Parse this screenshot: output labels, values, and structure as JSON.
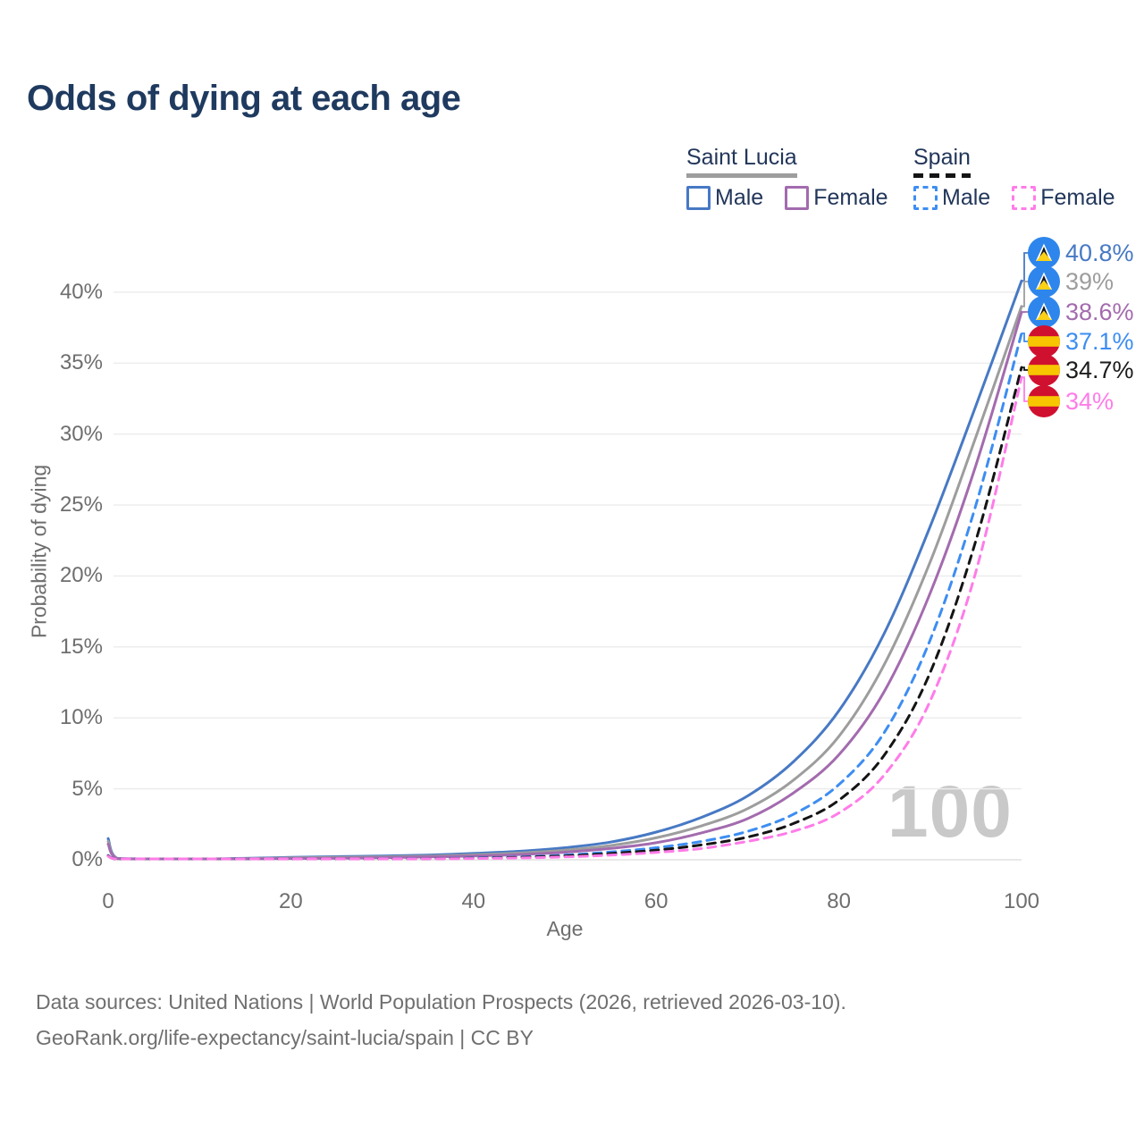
{
  "title": "Odds of dying at each age",
  "legend": {
    "groups": [
      {
        "country": "Saint Lucia",
        "line_style": "solid",
        "underline_color": "#9d9d9d",
        "items": [
          {
            "label": "Male"
          },
          {
            "label": "Female"
          }
        ]
      },
      {
        "country": "Spain",
        "line_style": "dashed",
        "underline_color": "#141414",
        "items": [
          {
            "label": "Male"
          },
          {
            "label": "Female"
          }
        ]
      }
    ]
  },
  "axes": {
    "x": {
      "title": "Age",
      "ticks": [
        0,
        20,
        40,
        60,
        80,
        100
      ]
    },
    "y": {
      "title": "Probability of dying",
      "ticks": [
        "0%",
        "5%",
        "10%",
        "15%",
        "20%",
        "25%",
        "30%",
        "35%",
        "40%"
      ]
    }
  },
  "watermark": "100",
  "end_labels": [
    {
      "flag": "saint-lucia",
      "value": "40.8%",
      "color": "#4779c4"
    },
    {
      "flag": "saint-lucia",
      "value": "39%",
      "color": "#9d9d9d"
    },
    {
      "flag": "saint-lucia",
      "value": "38.6%",
      "color": "#a36bae"
    },
    {
      "flag": "spain",
      "value": "37.1%",
      "color": "#3d8df2"
    },
    {
      "flag": "spain",
      "value": "34.7%",
      "color": "#1c1c1c"
    },
    {
      "flag": "spain",
      "value": "34%",
      "color": "#ff7ce8"
    }
  ],
  "footer": {
    "line1": "Data sources: United Nations | World Population Prospects (2026, retrieved 2026-03-10).",
    "line2": "GeoRank.org/life-expectancy/saint-lucia/spain | CC BY"
  },
  "chart_data": {
    "type": "line",
    "title": "Odds of dying at each age",
    "xlabel": "Age",
    "ylabel": "Probability of dying",
    "xlim": [
      0,
      100
    ],
    "ylim": [
      0,
      42
    ],
    "grid": true,
    "legend_position": "top-right",
    "x": [
      0,
      1,
      5,
      10,
      15,
      20,
      25,
      30,
      35,
      40,
      45,
      50,
      55,
      60,
      65,
      70,
      75,
      80,
      85,
      90,
      95,
      100
    ],
    "series": [
      {
        "name": "Saint Lucia Male",
        "country": "Saint Lucia",
        "sex": "male",
        "color": "#4779c4",
        "dashed": false,
        "end_label": "40.8%",
        "values": [
          1.5,
          0.1,
          0.05,
          0.05,
          0.1,
          0.17,
          0.22,
          0.27,
          0.33,
          0.45,
          0.6,
          0.85,
          1.25,
          1.95,
          3.0,
          4.5,
          6.9,
          10.5,
          16.0,
          23.5,
          32.0,
          40.8
        ]
      },
      {
        "name": "Saint Lucia Both sexes",
        "country": "Saint Lucia",
        "sex": "both",
        "color": "#9d9d9d",
        "dashed": false,
        "end_label": "39%",
        "values": [
          1.3,
          0.09,
          0.04,
          0.04,
          0.08,
          0.13,
          0.17,
          0.21,
          0.26,
          0.35,
          0.48,
          0.68,
          1.0,
          1.55,
          2.4,
          3.6,
          5.6,
          8.7,
          13.8,
          21.0,
          29.8,
          39.0
        ]
      },
      {
        "name": "Saint Lucia Female",
        "country": "Saint Lucia",
        "sex": "female",
        "color": "#a36bae",
        "dashed": false,
        "end_label": "38.6%",
        "values": [
          1.1,
          0.08,
          0.04,
          0.04,
          0.06,
          0.09,
          0.11,
          0.15,
          0.2,
          0.27,
          0.37,
          0.53,
          0.8,
          1.2,
          1.9,
          2.9,
          4.7,
          7.4,
          11.9,
          18.8,
          27.8,
          38.6
        ]
      },
      {
        "name": "Spain Male",
        "country": "Spain",
        "sex": "male",
        "color": "#3d8df2",
        "dashed": true,
        "end_label": "37.1%",
        "values": [
          0.3,
          0.02,
          0.01,
          0.01,
          0.03,
          0.05,
          0.06,
          0.07,
          0.09,
          0.13,
          0.2,
          0.33,
          0.55,
          0.85,
          1.3,
          2.0,
          3.2,
          5.3,
          9.0,
          15.5,
          25.0,
          37.1
        ]
      },
      {
        "name": "Spain Both sexes",
        "country": "Spain",
        "sex": "both",
        "color": "#141414",
        "dashed": true,
        "end_label": "34.7%",
        "values": [
          0.28,
          0.02,
          0.01,
          0.01,
          0.02,
          0.04,
          0.05,
          0.06,
          0.08,
          0.11,
          0.17,
          0.27,
          0.44,
          0.68,
          1.05,
          1.6,
          2.55,
          4.2,
          7.4,
          13.2,
          22.5,
          34.7
        ]
      },
      {
        "name": "Spain Female",
        "country": "Spain",
        "sex": "female",
        "color": "#ff7ce8",
        "dashed": true,
        "end_label": "34%",
        "values": [
          0.25,
          0.02,
          0.01,
          0.01,
          0.02,
          0.03,
          0.04,
          0.05,
          0.07,
          0.09,
          0.13,
          0.2,
          0.33,
          0.52,
          0.8,
          1.3,
          2.0,
          3.3,
          6.0,
          11.2,
          20.3,
          34.0
        ]
      }
    ]
  }
}
